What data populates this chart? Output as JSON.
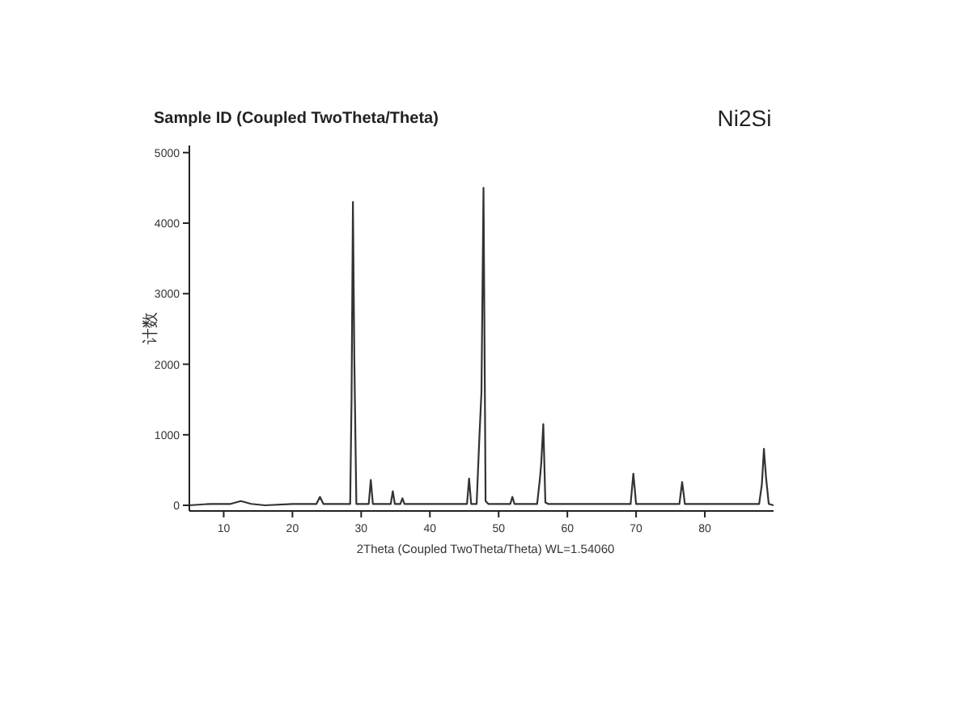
{
  "chart_data": {
    "type": "line",
    "title": "Sample ID (Coupled TwoTheta/Theta)",
    "annotations": [
      "Ni2Si"
    ],
    "xlabel": "2Theta (Coupled TwoTheta/Theta) WL=1.54060",
    "ylabel": "计数",
    "xlim": [
      5,
      90
    ],
    "xticks": [
      10,
      20,
      30,
      40,
      50,
      60,
      70,
      80
    ],
    "ylim": [
      -80,
      5100
    ],
    "yticks": [
      0,
      1000,
      2000,
      3000,
      4000,
      5000
    ],
    "grid": false,
    "marker": "none",
    "line_style": "solid",
    "series": [
      {
        "color": "#333333",
        "x": [
          5,
          8,
          11,
          12.5,
          14,
          16,
          20,
          23.5,
          24,
          24.5,
          28.4,
          28.6,
          28.8,
          29.0,
          29.3,
          31.1,
          31.4,
          31.7,
          34.3,
          34.6,
          34.9,
          35.7,
          36.0,
          36.3,
          40,
          45.4,
          45.7,
          46.0,
          46.8,
          47.2,
          47.5,
          47.8,
          48.1,
          48.5,
          51.7,
          52.0,
          52.3,
          55.6,
          56.0,
          56.2,
          56.5,
          56.8,
          57.2,
          63,
          69.2,
          69.6,
          70.0,
          76.3,
          76.7,
          77.1,
          82,
          87.9,
          88.3,
          88.6,
          88.9,
          89.3,
          90
        ],
        "values": [
          0,
          20,
          20,
          60,
          20,
          0,
          20,
          20,
          120,
          20,
          20,
          1500,
          4300,
          2100,
          20,
          20,
          360,
          20,
          20,
          200,
          20,
          20,
          100,
          20,
          20,
          20,
          380,
          20,
          20,
          970,
          1600,
          4500,
          60,
          20,
          20,
          120,
          20,
          20,
          370,
          600,
          1150,
          40,
          20,
          20,
          20,
          450,
          20,
          20,
          330,
          20,
          20,
          20,
          300,
          800,
          400,
          20,
          0
        ]
      }
    ]
  }
}
